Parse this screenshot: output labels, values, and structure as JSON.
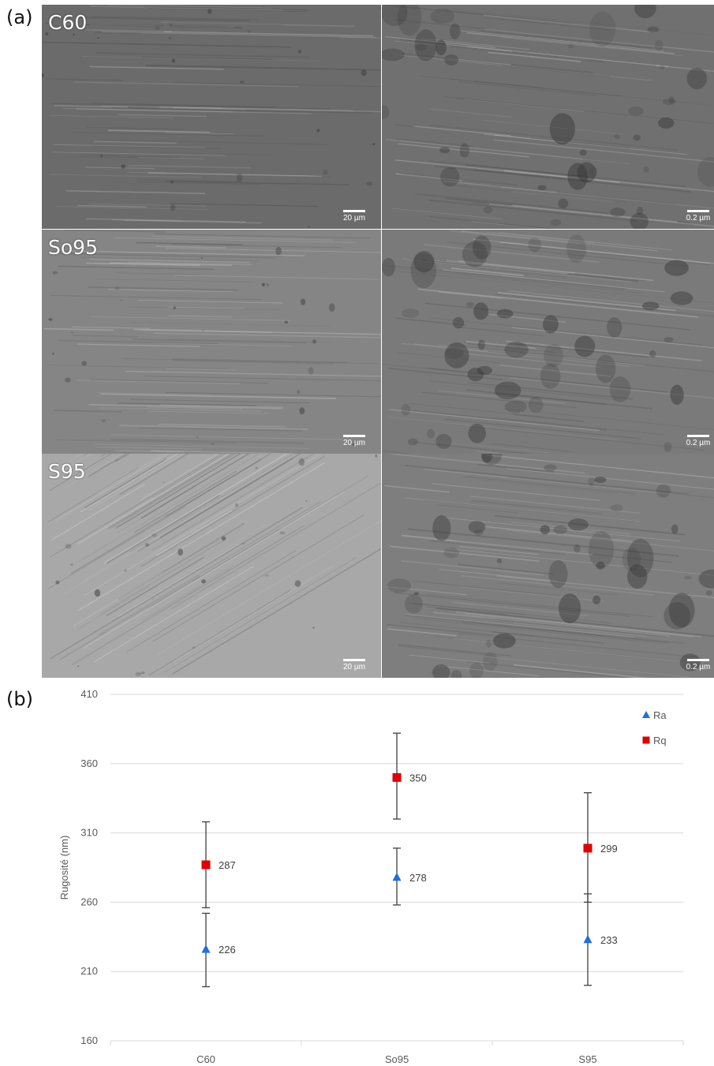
{
  "panels": {
    "a": "(a)",
    "b": "(b)"
  },
  "micrographs": [
    {
      "sample": "C60",
      "scale_left": "20 µm",
      "scale_right": "0.2 µm",
      "tone_left": "#6b6b6b",
      "tone_right": "#707070"
    },
    {
      "sample": "So95",
      "scale_left": "20 µm",
      "scale_right": "0.2 µm",
      "tone_left": "#858585",
      "tone_right": "#7a7a7a"
    },
    {
      "sample": "S95",
      "scale_left": "20 µm",
      "scale_right": "0.2 µm",
      "tone_left": "#a8a8a8",
      "tone_right": "#7e7e7e"
    }
  ],
  "chart_data": {
    "type": "scatter",
    "title": "",
    "ylabel": "Rugosité (nm)",
    "xlabel": "",
    "categories": [
      "C60",
      "So95",
      "S95"
    ],
    "ylim": [
      160,
      410
    ],
    "yticks": [
      "160",
      "210",
      "260",
      "310",
      "360",
      "410"
    ],
    "grid": true,
    "legend_position": "top-right",
    "series": [
      {
        "name": "Ra",
        "marker": "triangle",
        "color": "#1f6fdc",
        "values": [
          226,
          278,
          233
        ],
        "labels": [
          "226",
          "278",
          "233"
        ],
        "err_low": [
          199,
          258,
          200
        ],
        "err_high": [
          252,
          299,
          266
        ]
      },
      {
        "name": "Rq",
        "marker": "square",
        "color": "#e00000",
        "values": [
          287,
          350,
          299
        ],
        "labels": [
          "287",
          "350",
          "299"
        ],
        "err_low": [
          256,
          320,
          260
        ],
        "err_high": [
          318,
          382,
          339
        ]
      }
    ]
  }
}
